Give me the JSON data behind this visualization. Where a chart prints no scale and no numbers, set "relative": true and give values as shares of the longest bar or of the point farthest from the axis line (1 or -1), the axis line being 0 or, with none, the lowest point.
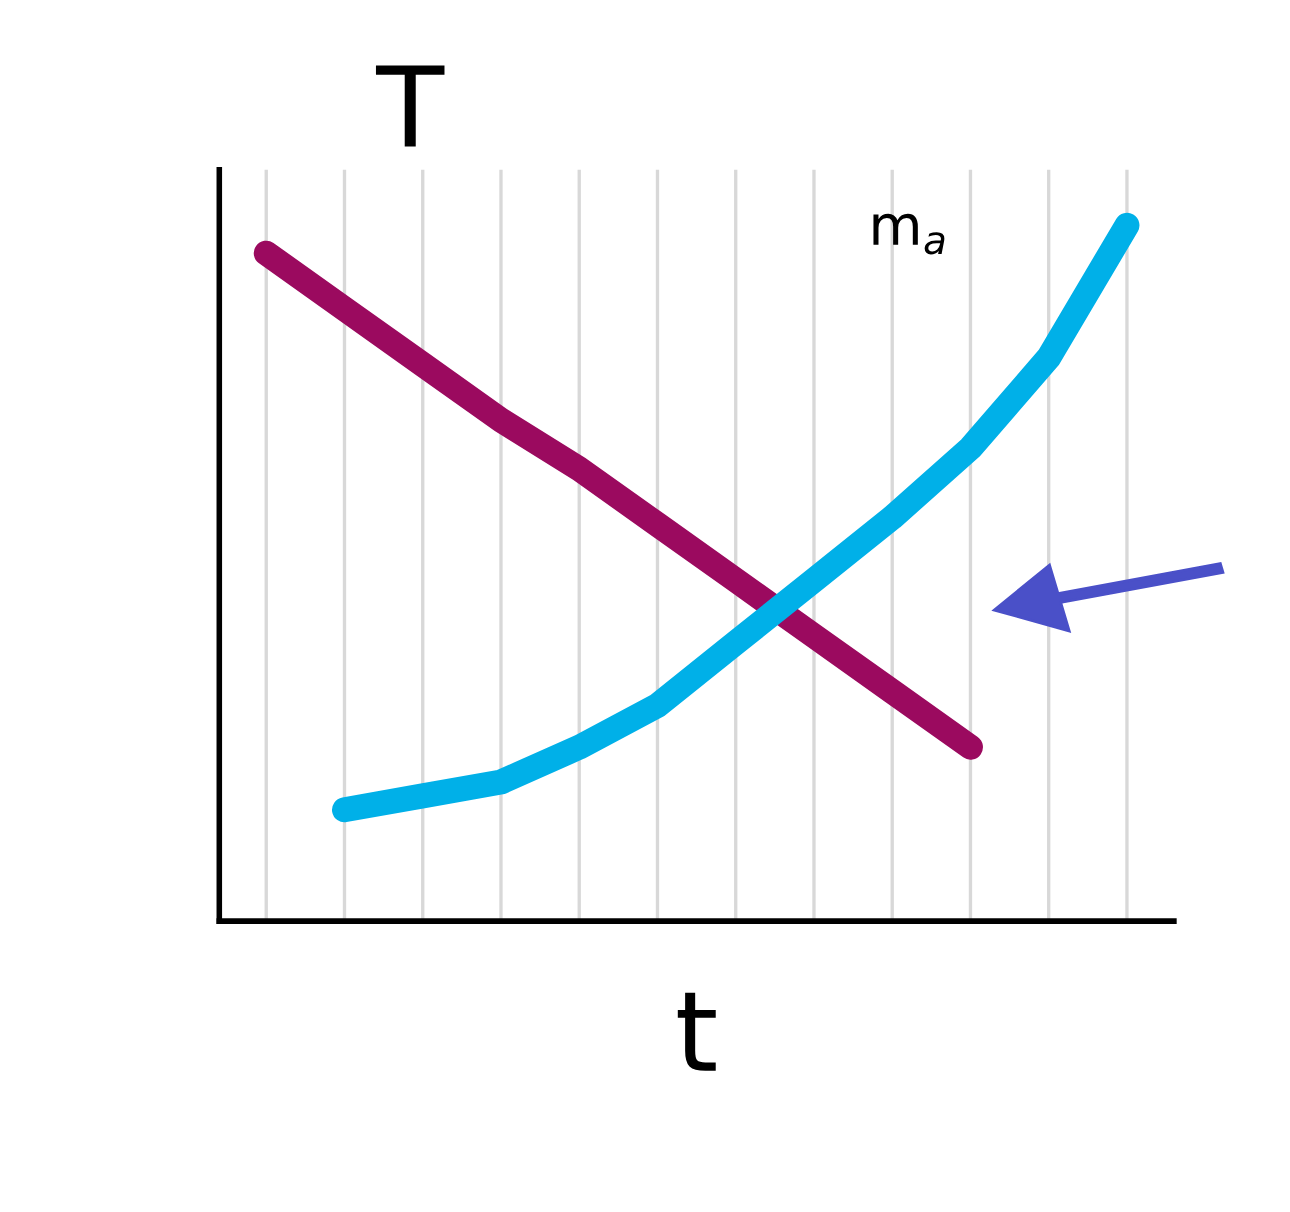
{
  "chart_data": {
    "type": "line",
    "xlabel": "t",
    "ylabel": "T",
    "relative": true,
    "grid": true,
    "legend": false,
    "categories": [
      null,
      null,
      null,
      null,
      null,
      null,
      null,
      null,
      null,
      null,
      null,
      null
    ],
    "series": [
      {
        "color": "#9b0a5f",
        "values": [
          0.96,
          0.88,
          0.8,
          0.72,
          0.65,
          0.57,
          0.49,
          0.41,
          0.33,
          0.25,
          null,
          null
        ]
      },
      {
        "color": "#00b0e8",
        "values": [
          null,
          0.16,
          0.18,
          0.2,
          0.25,
          0.31,
          0.4,
          0.49,
          0.58,
          0.68,
          0.81,
          1.0
        ]
      }
    ],
    "annotations": [
      "m$_{a}$"
    ]
  }
}
